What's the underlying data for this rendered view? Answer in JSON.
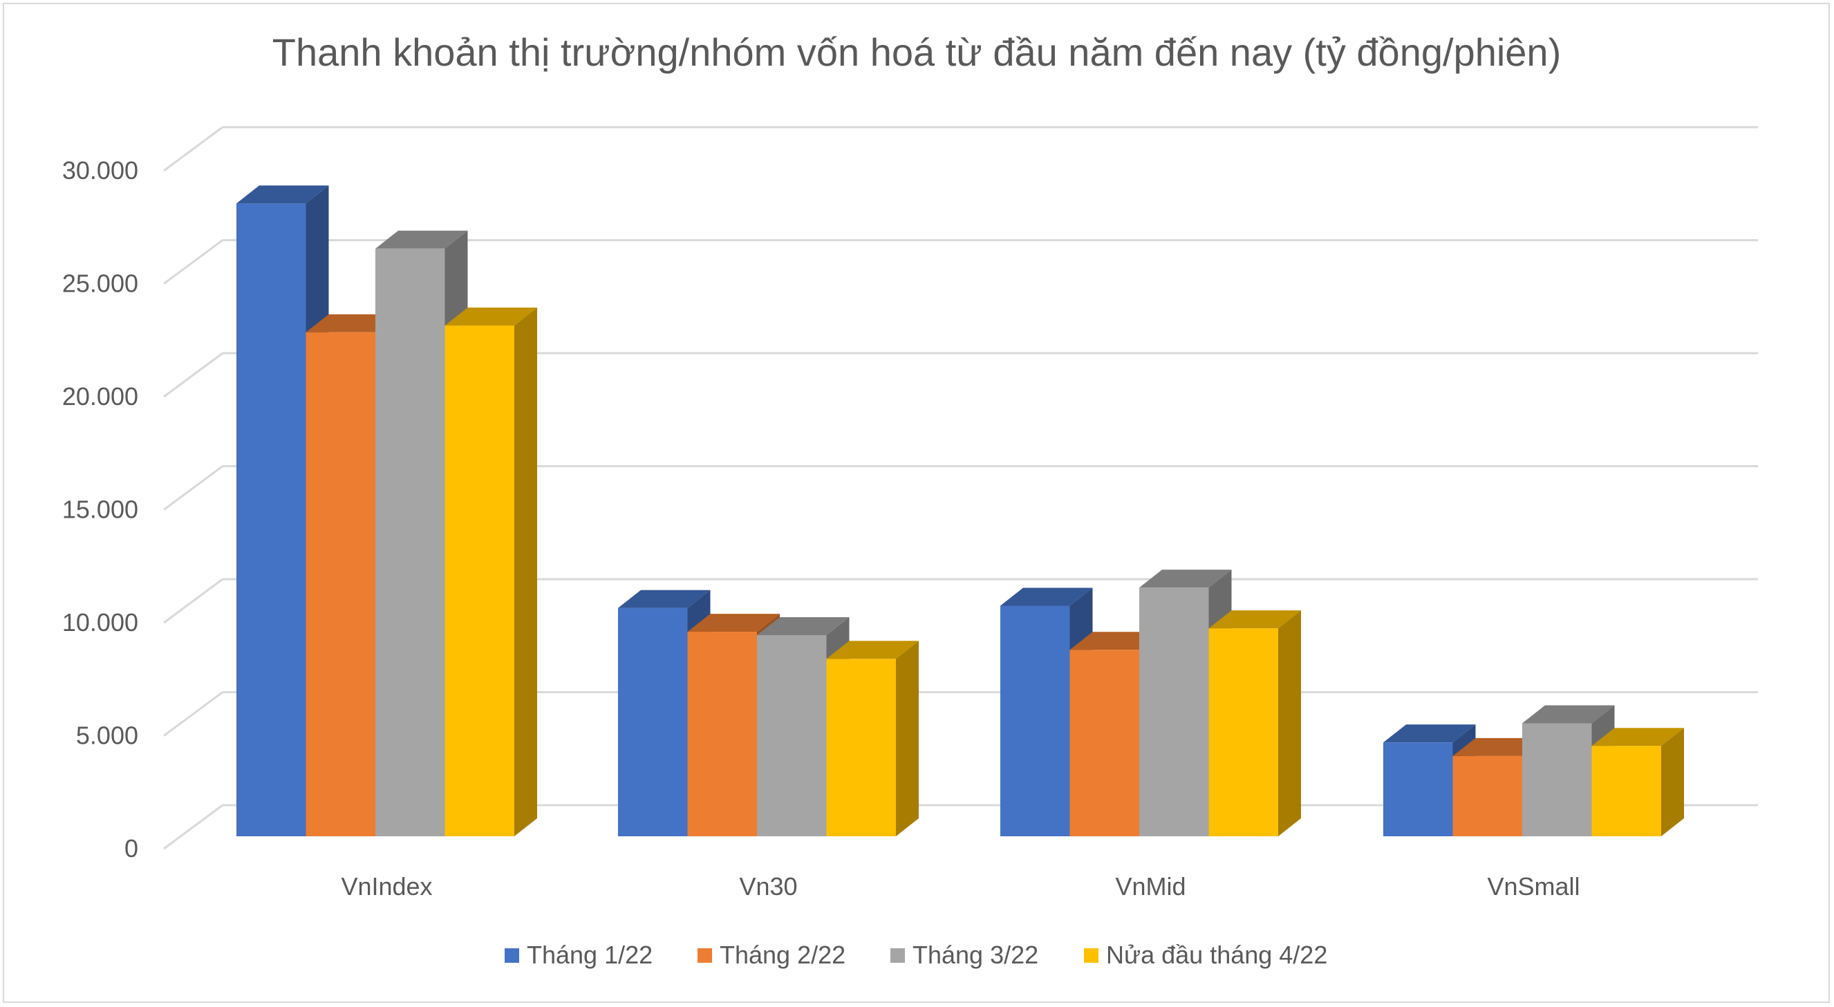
{
  "chart_data": {
    "type": "bar",
    "variant": "3d-clustered-column",
    "title": "Thanh khoản thị trường/nhóm vốn hoá từ đầu năm đến nay (tỷ đồng/phiên)",
    "xlabel": "",
    "ylabel": "",
    "categories": [
      "VnIndex",
      "Vn30",
      "VnMid",
      "VnSmall"
    ],
    "series": [
      {
        "name": "Tháng 1/22",
        "color": "#4472C4",
        "values": [
          28000,
          10100,
          10200,
          4150
        ]
      },
      {
        "name": "Tháng 2/22",
        "color": "#ED7D31",
        "values": [
          22300,
          9050,
          8250,
          3550
        ]
      },
      {
        "name": "Tháng 3/22",
        "color": "#A5A5A5",
        "values": [
          26000,
          8900,
          11000,
          5000
        ]
      },
      {
        "name": "Nửa đầu tháng 4/22",
        "color": "#FFC000",
        "values": [
          22600,
          7850,
          9200,
          4000
        ]
      }
    ],
    "ylim": [
      0,
      30000
    ],
    "yticks": [
      "0",
      "5.000",
      "10.000",
      "15.000",
      "20.000",
      "25.000",
      "30.000"
    ],
    "grid": true,
    "legend": "bottom"
  }
}
